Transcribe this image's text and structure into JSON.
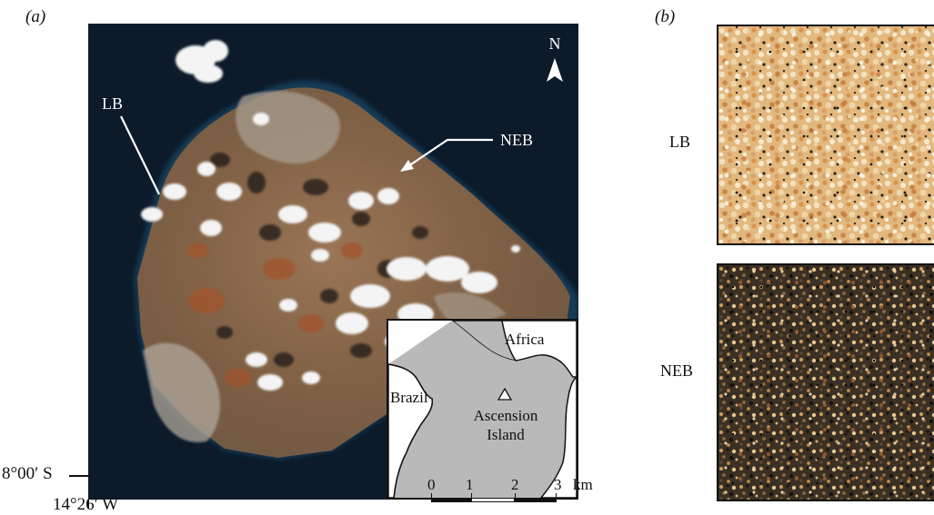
{
  "panel_a": {
    "label": "(a)",
    "north_label": "N",
    "site_labels": {
      "lb": "LB",
      "neb": "NEB"
    },
    "latitude_label": "8°00′ S",
    "longitude_label": "14°26′ W",
    "scale_bar": {
      "ticks": [
        "0",
        "1",
        "2",
        "3"
      ],
      "unit": "km"
    },
    "inset": {
      "labels": {
        "africa": "Africa",
        "brazil": "Brazil",
        "ascension_line1": "Ascension",
        "ascension_line2": "Island"
      }
    }
  },
  "panel_b": {
    "label": "(b)",
    "rows": [
      {
        "label": "LB",
        "sample_color": "#e0b27a"
      },
      {
        "label": "NEB",
        "sample_color": "#3b2f22"
      }
    ]
  },
  "colors": {
    "ocean": "#0c1a2a",
    "land": "#8a6a4e",
    "inset_land": "#b9b9b9"
  }
}
